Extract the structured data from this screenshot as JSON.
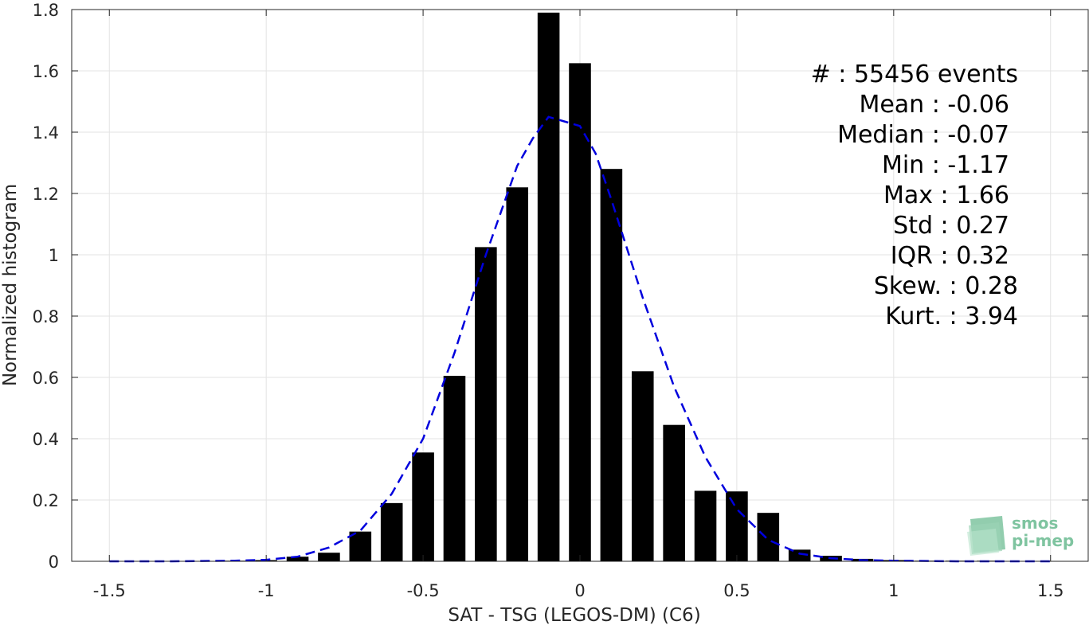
{
  "chart_data": {
    "type": "bar",
    "xlabel": "SAT - TSG (LEGOS-DM) (C6)",
    "ylabel": "Normalized histogram",
    "xlim": [
      -1.62,
      1.62
    ],
    "ylim": [
      0,
      1.8
    ],
    "xticks": [
      -1.5,
      -1,
      -0.5,
      0,
      0.5,
      1,
      1.5
    ],
    "xtick_labels": [
      "-1.5",
      "-1",
      "-0.5",
      "0",
      "0.5",
      "1",
      "1.5"
    ],
    "yticks": [
      0,
      0.2,
      0.4,
      0.6,
      0.8,
      1,
      1.2,
      1.4,
      1.6,
      1.8
    ],
    "ytick_labels": [
      "0",
      "0.2",
      "0.4",
      "0.6",
      "0.8",
      "1",
      "1.2",
      "1.4",
      "1.6",
      "1.8"
    ],
    "grid": true,
    "bar_color": "#000000",
    "bar_width": 0.07,
    "bars": {
      "x": [
        -1.5,
        -1.4,
        -1.3,
        -1.2,
        -1.1,
        -1.0,
        -0.9,
        -0.8,
        -0.7,
        -0.6,
        -0.5,
        -0.4,
        -0.3,
        -0.2,
        -0.1,
        0.0,
        0.1,
        0.2,
        0.3,
        0.4,
        0.5,
        0.6,
        0.7,
        0.8,
        0.9,
        1.0,
        1.1,
        1.2,
        1.3,
        1.4,
        1.5
      ],
      "y": [
        0.0,
        0.0,
        0.0,
        0.0,
        0.002,
        0.004,
        0.015,
        0.028,
        0.097,
        0.19,
        0.355,
        0.605,
        1.025,
        1.22,
        1.79,
        1.625,
        1.28,
        0.62,
        0.445,
        0.23,
        0.228,
        0.158,
        0.038,
        0.018,
        0.008,
        0.004,
        0.002,
        0.002,
        0.002,
        0.0,
        0.0
      ]
    },
    "fit_line": {
      "style": "dashed",
      "color": "#0000dd",
      "x": [
        -1.5,
        -1.3,
        -1.1,
        -1.0,
        -0.9,
        -0.8,
        -0.7,
        -0.6,
        -0.5,
        -0.4,
        -0.3,
        -0.2,
        -0.15,
        -0.1,
        -0.05,
        0.0,
        0.05,
        0.1,
        0.2,
        0.3,
        0.4,
        0.5,
        0.6,
        0.7,
        0.8,
        0.9,
        1.0,
        1.2,
        1.5
      ],
      "y": [
        0.0,
        0.0,
        0.002,
        0.005,
        0.015,
        0.045,
        0.1,
        0.22,
        0.4,
        0.68,
        1.0,
        1.29,
        1.38,
        1.45,
        1.435,
        1.42,
        1.33,
        1.18,
        0.86,
        0.57,
        0.34,
        0.17,
        0.07,
        0.025,
        0.01,
        0.004,
        0.002,
        0.0,
        0.0
      ]
    },
    "annotations": [
      "#  : 55456 events",
      "Mean : -0.06",
      "Median : -0.07",
      "Min : -1.17",
      "Max : 1.66",
      "Std : 0.27",
      "IQR : 0.32",
      "Skew. : 0.28",
      "Kurt. : 3.94"
    ]
  },
  "logo": {
    "line1": "smos",
    "line2": "pi-mep",
    "color": "#7fc4a0"
  }
}
